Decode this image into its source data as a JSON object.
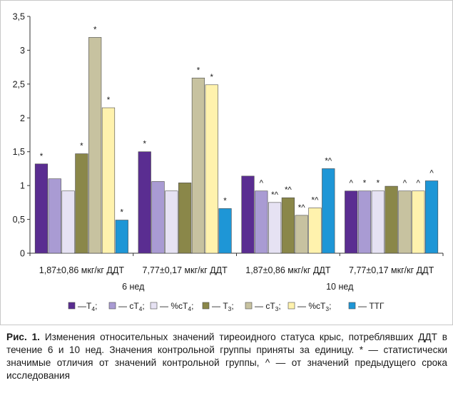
{
  "chart_data": {
    "type": "bar",
    "ylim": [
      0,
      3.5
    ],
    "yticks": [
      "0",
      "0,5",
      "1",
      "1,5",
      "2",
      "2,5",
      "3",
      "3,5"
    ],
    "ytick_values": [
      0,
      0.5,
      1,
      1.5,
      2,
      2.5,
      3,
      3.5
    ],
    "grid": false,
    "legend_position": "bottom",
    "categories": [
      "1,87±0,86 мкг/кг ДДТ",
      "7,77±0,17 мкг/кг ДДТ",
      "1,87±0,86 мкг/кг ДДТ",
      "7,77±0,17 мкг/кг ДДТ"
    ],
    "groups": [
      {
        "label": "6 нед",
        "categories": [
          0,
          1
        ]
      },
      {
        "label": "10 нед",
        "categories": [
          2,
          3
        ]
      }
    ],
    "series": [
      {
        "name": "Т4",
        "color": "#5a2d91",
        "values": [
          1.32,
          1.5,
          1.14,
          0.92
        ],
        "marks": [
          "*",
          "*",
          "",
          "^"
        ]
      },
      {
        "name": "сТ4",
        "color": "#a99bd3",
        "values": [
          1.1,
          1.06,
          0.92,
          0.92
        ],
        "marks": [
          "",
          "",
          "^",
          "*"
        ]
      },
      {
        "name": "%сТ4",
        "color": "#e6e2f3",
        "values": [
          0.92,
          0.92,
          0.75,
          0.92
        ],
        "marks": [
          "",
          "",
          "*^",
          "*"
        ]
      },
      {
        "name": "Т3",
        "color": "#8a8749",
        "values": [
          1.47,
          1.04,
          0.82,
          0.99
        ],
        "marks": [
          "*",
          "",
          "*^",
          ""
        ]
      },
      {
        "name": "сТ3",
        "color": "#c7c2a0",
        "values": [
          3.19,
          2.59,
          0.56,
          0.92
        ],
        "marks": [
          "*",
          "*",
          "*^",
          "^"
        ]
      },
      {
        "name": "%сТ3",
        "color": "#fff2ad",
        "values": [
          2.15,
          2.49,
          0.67,
          0.92
        ],
        "marks": [
          "*",
          "*",
          "*^",
          "^"
        ]
      },
      {
        "name": "ТТГ",
        "color": "#1e96d6",
        "values": [
          0.49,
          0.66,
          1.25,
          1.07
        ],
        "marks": [
          "*",
          "*",
          "*^",
          "^"
        ]
      }
    ]
  },
  "legend": {
    "entries": [
      {
        "prefix": "—Т",
        "sub": "4",
        "suffix": ";"
      },
      {
        "prefix": "— сТ",
        "sub": "4",
        "suffix": ";"
      },
      {
        "prefix": "— %сТ",
        "sub": "4",
        "suffix": ";"
      },
      {
        "prefix": "— Т",
        "sub": "3",
        "suffix": ";"
      },
      {
        "prefix": "— сТ",
        "sub": "3",
        "suffix": ";"
      },
      {
        "prefix": "— %сТ",
        "sub": "3",
        "suffix": ";"
      },
      {
        "prefix": "— ТТГ",
        "sub": "",
        "suffix": ""
      }
    ]
  },
  "caption": {
    "label": "Рис. 1.",
    "text": "Изменения относительных значений тиреоидного статуса крыс, потреблявших ДДТ в течение 6 и 10 нед. Значения контрольной группы приняты за единицу. * — статистически значимые отличия от значений контрольной группы, ^ — от значений предыдущего срока исследования"
  }
}
